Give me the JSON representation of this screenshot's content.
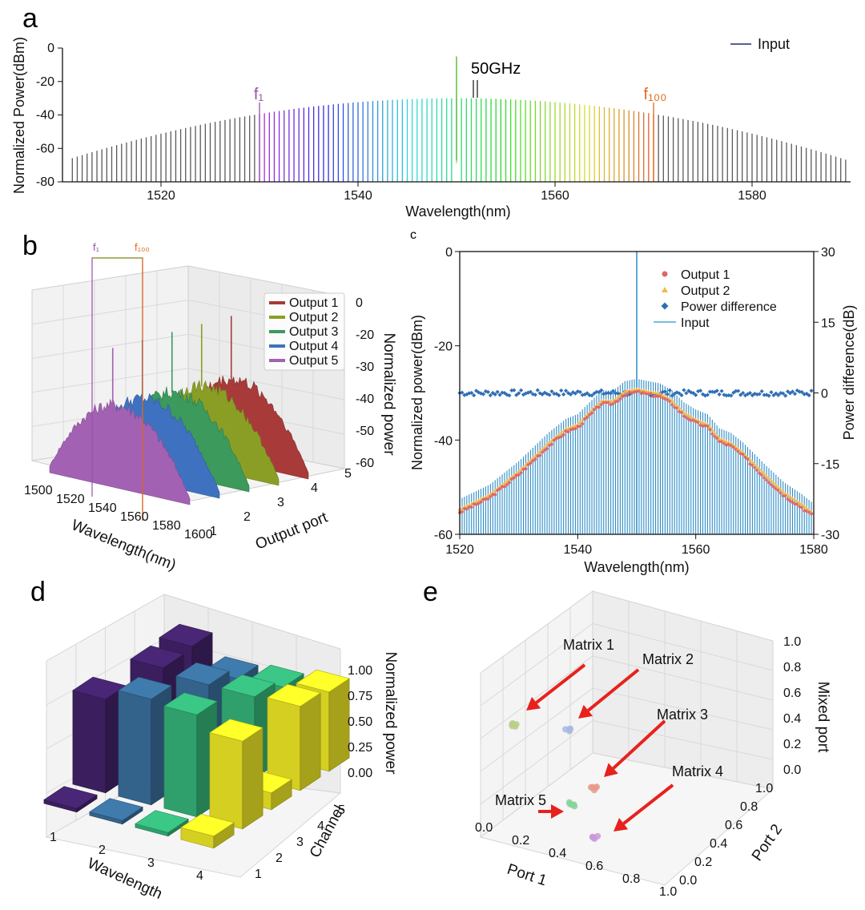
{
  "panels": [
    {
      "id": "a",
      "letter": "a"
    },
    {
      "id": "b",
      "letter": "b"
    },
    {
      "id": "c",
      "letter": "c"
    },
    {
      "id": "d",
      "letter": "d"
    },
    {
      "id": "e",
      "letter": "e"
    }
  ],
  "chart_data": [
    {
      "id": "a",
      "type": "line",
      "title": "",
      "xlabel": "Wavelength(nm)",
      "ylabel": "Normalized Power(dBm)",
      "xlim": [
        1510,
        1590
      ],
      "ylim": [
        -80,
        0
      ],
      "xticks": [
        "1520",
        "1540",
        "1560",
        "1580"
      ],
      "yticks": [
        "0",
        "-20",
        "-40",
        "-60",
        "-80"
      ],
      "legend": [
        "Input"
      ],
      "legend_position": "top-right",
      "series": [
        {
          "name": "Input",
          "color": "#1f2d6b"
        }
      ],
      "comb": {
        "first_nm": 1511,
        "last_nm": 1589.5,
        "count": 158,
        "peak_nm": 1550,
        "center_level_dBm": -30,
        "edge_level_dBm": -64,
        "colored_range_nm": [
          1530,
          1570
        ],
        "gray_color": "#5a5a5a"
      },
      "pump_line": {
        "x_nm": 1550,
        "level_dBm": -5
      },
      "annotations": [
        {
          "text": "f₁",
          "x_nm": 1530,
          "color": "#9b4ea8"
        },
        {
          "text": "f₁₀₀",
          "x_nm": 1570,
          "color": "#e06a1b"
        },
        {
          "text": "50GHz",
          "x_nm": 1552
        }
      ]
    },
    {
      "id": "b",
      "type": "area",
      "title": "",
      "xlabel": "Wavelength(nm)",
      "ylabel": "Output port",
      "zlabel": "Normalized power",
      "xticks": [
        "1500",
        "1520",
        "1540",
        "1560",
        "1580",
        "1600"
      ],
      "yticks": [
        "1",
        "2",
        "3",
        "4",
        "5"
      ],
      "zticks": [
        "0",
        "-20",
        "-30",
        "-40",
        "-50",
        "-60"
      ],
      "legend_position": "top-right",
      "series": [
        {
          "name": "Output 1",
          "port": 5,
          "color": "#a83a3a"
        },
        {
          "name": "Output 2",
          "port": 4,
          "color": "#8a9e26"
        },
        {
          "name": "Output 3",
          "port": 3,
          "color": "#3b9a5c"
        },
        {
          "name": "Output 4",
          "port": 2,
          "color": "#3e72c0"
        },
        {
          "name": "Output 5",
          "port": 1,
          "color": "#a361b4"
        }
      ],
      "annotations": [
        {
          "text": "f₁",
          "color": "#9b4ea8"
        },
        {
          "text": "f₁₀₀",
          "color": "#e06a1b"
        }
      ]
    },
    {
      "id": "c",
      "type": "scatter",
      "title": "",
      "xlabel": "Wavelength(nm)",
      "ylabel": "Normalized power(dBm)",
      "y2label": "Power difference(dB)",
      "xlim": [
        1520,
        1580
      ],
      "ylim": [
        -60,
        0
      ],
      "y2lim": [
        -30,
        30
      ],
      "xticks": [
        "1520",
        "1540",
        "1560",
        "1580"
      ],
      "yticks": [
        "0",
        "-20",
        "-40",
        "-60"
      ],
      "y2ticks": [
        "30",
        "15",
        "0",
        "-15",
        "-30"
      ],
      "legend_position": "top-right",
      "series": [
        {
          "name": "Output 1",
          "marker": "circle",
          "color": "#e06666"
        },
        {
          "name": "Output 2",
          "marker": "triangle",
          "color": "#f2b84b"
        },
        {
          "name": "Power difference",
          "marker": "diamond",
          "color": "#2f6fb5",
          "axis": "right"
        },
        {
          "name": "Input",
          "marker": "line",
          "color": "#4aa8d8"
        }
      ],
      "envelope_points": [
        [
          1520,
          -55
        ],
        [
          1525,
          -52
        ],
        [
          1530,
          -47
        ],
        [
          1535,
          -41
        ],
        [
          1538,
          -38
        ],
        [
          1540,
          -37
        ],
        [
          1542,
          -34.5
        ],
        [
          1544,
          -32
        ],
        [
          1546,
          -32
        ],
        [
          1548,
          -30
        ],
        [
          1550,
          -29.5
        ],
        [
          1552,
          -30
        ],
        [
          1554,
          -30.5
        ],
        [
          1556,
          -32
        ],
        [
          1558,
          -34.5
        ],
        [
          1560,
          -36
        ],
        [
          1562,
          -37
        ],
        [
          1564,
          -40
        ],
        [
          1566,
          -41
        ],
        [
          1568,
          -43
        ],
        [
          1570,
          -45.5
        ],
        [
          1572,
          -48
        ],
        [
          1575,
          -51.5
        ],
        [
          1578,
          -54
        ],
        [
          1580,
          -56
        ]
      ],
      "power_difference_dB": 0,
      "input_peak": {
        "x_nm": 1550,
        "level_dBm": 0
      }
    },
    {
      "id": "d",
      "type": "bar",
      "title": "",
      "xlabel": "Wavelength",
      "ylabel": "Channel",
      "zlabel": "Normalized power",
      "xticks": [
        "1",
        "2",
        "3",
        "4"
      ],
      "yticks": [
        "1",
        "2",
        "3",
        "4",
        "5"
      ],
      "zticks": [
        "0.00",
        "0.25",
        "0.50",
        "0.75",
        "1.00"
      ],
      "series": [
        {
          "wavelength": "1",
          "color": "#3b1e5e",
          "values": [
            0.03,
            0.78,
            0.12,
            0.72,
            0.74
          ]
        },
        {
          "wavelength": "2",
          "color": "#33628a",
          "values": [
            0.03,
            0.88,
            0.1,
            0.68,
            0.57
          ]
        },
        {
          "wavelength": "3",
          "color": "#2fa06b",
          "values": [
            0.03,
            0.85,
            0.12,
            0.68,
            0.6
          ]
        },
        {
          "wavelength": "4",
          "color": "#d4cf21",
          "values": [
            0.1,
            0.73,
            0.14,
            0.7,
            0.66
          ]
        }
      ]
    },
    {
      "id": "e",
      "type": "scatter",
      "title": "",
      "xlabel": "Port 1",
      "ylabel": "Port 2",
      "zlabel": "Mixed port",
      "xticks": [
        "0.0",
        "0.2",
        "0.4",
        "0.6",
        "0.8",
        "1.0"
      ],
      "yticks": [
        "0.0",
        "0.2",
        "0.4",
        "0.6",
        "0.8",
        "1.0"
      ],
      "zticks": [
        "0.0",
        "0.2",
        "0.4",
        "0.6",
        "0.8",
        "1.0"
      ],
      "series": [
        {
          "name": "Matrix 1",
          "color": "#b8cf8a"
        },
        {
          "name": "Matrix 2",
          "color": "#a8b8e0"
        },
        {
          "name": "Matrix 3",
          "color": "#e89a8a"
        },
        {
          "name": "Matrix 4",
          "color": "#c89ad8"
        },
        {
          "name": "Matrix 5",
          "color": "#86d49a"
        }
      ],
      "arrow_color": "#e8211d"
    }
  ]
}
